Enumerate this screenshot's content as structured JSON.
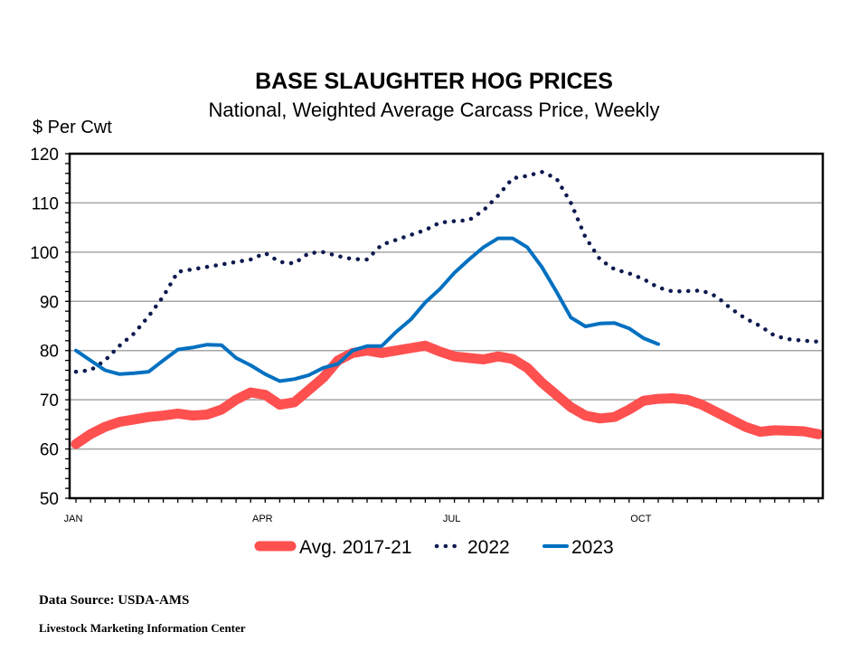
{
  "chart_data": {
    "type": "line",
    "title": "BASE SLAUGHTER HOG PRICES",
    "subtitle": "National, Weighted Average Carcass Price, Weekly",
    "ylabel": "$ Per Cwt",
    "xlabel": "",
    "ylim": [
      50,
      120
    ],
    "yticks": [
      50,
      60,
      70,
      80,
      90,
      100,
      110,
      120
    ],
    "xlim_weeks": [
      1,
      52
    ],
    "xtick_labels": [
      {
        "label": "JAN",
        "week": 1
      },
      {
        "label": "APR",
        "week": 14
      },
      {
        "label": "JUL",
        "week": 27
      },
      {
        "label": "OCT",
        "week": 40
      }
    ],
    "grid": true,
    "legend": "bottom",
    "series": [
      {
        "name": "Avg. 2017-21",
        "color": "#FF5050",
        "style": "thick",
        "values": [
          61,
          63,
          64.5,
          65.5,
          66,
          66.5,
          66.8,
          67.2,
          66.8,
          67,
          68,
          70,
          71.5,
          71,
          69,
          69.5,
          72,
          74.5,
          78,
          79.5,
          80,
          79.5,
          80,
          80.5,
          81,
          79.8,
          78.8,
          78.5,
          78.2,
          78.8,
          78.3,
          76.5,
          73.5,
          71,
          68.5,
          66.8,
          66.2,
          66.5,
          68,
          69.8,
          70.2,
          70.3,
          70,
          69,
          67.5,
          66,
          64.5,
          63.5,
          63.8,
          63.7,
          63.6,
          63
        ]
      },
      {
        "name": "2022",
        "color": "#0D1A4F",
        "style": "dotted",
        "values": [
          75.7,
          76,
          78,
          81,
          83.5,
          87,
          91,
          96,
          96.5,
          97,
          97.5,
          98,
          98.5,
          99.8,
          98,
          97.7,
          99.8,
          100,
          99.2,
          98.6,
          98.5,
          101.5,
          102.5,
          103.5,
          104.5,
          106,
          106.3,
          106.5,
          108.5,
          111.5,
          115,
          115.5,
          116.3,
          115,
          110,
          103,
          98.5,
          96.5,
          95.7,
          94.5,
          92.8,
          92,
          92.1,
          92.2,
          91,
          88.5,
          86.5,
          85,
          83,
          82.3,
          82,
          81.8
        ]
      },
      {
        "name": "2023",
        "color": "#0070C0",
        "style": "solid",
        "values": [
          80,
          78,
          76,
          75.2,
          75.4,
          75.7,
          78,
          80.2,
          80.6,
          81.2,
          81.1,
          78.5,
          77,
          75.2,
          73.8,
          74.2,
          75,
          76.5,
          77.3,
          80,
          80.9,
          80.9,
          83.8,
          86.3,
          89.8,
          92.5,
          95.8,
          98.5,
          101,
          102.8,
          102.8,
          101,
          97,
          92,
          86.7,
          84.9,
          85.5,
          85.6,
          84.5,
          82.5,
          81.3
        ]
      }
    ]
  },
  "footer": {
    "source": "Data Source:  USDA-AMS",
    "org": "Livestock Marketing Information  Center"
  }
}
